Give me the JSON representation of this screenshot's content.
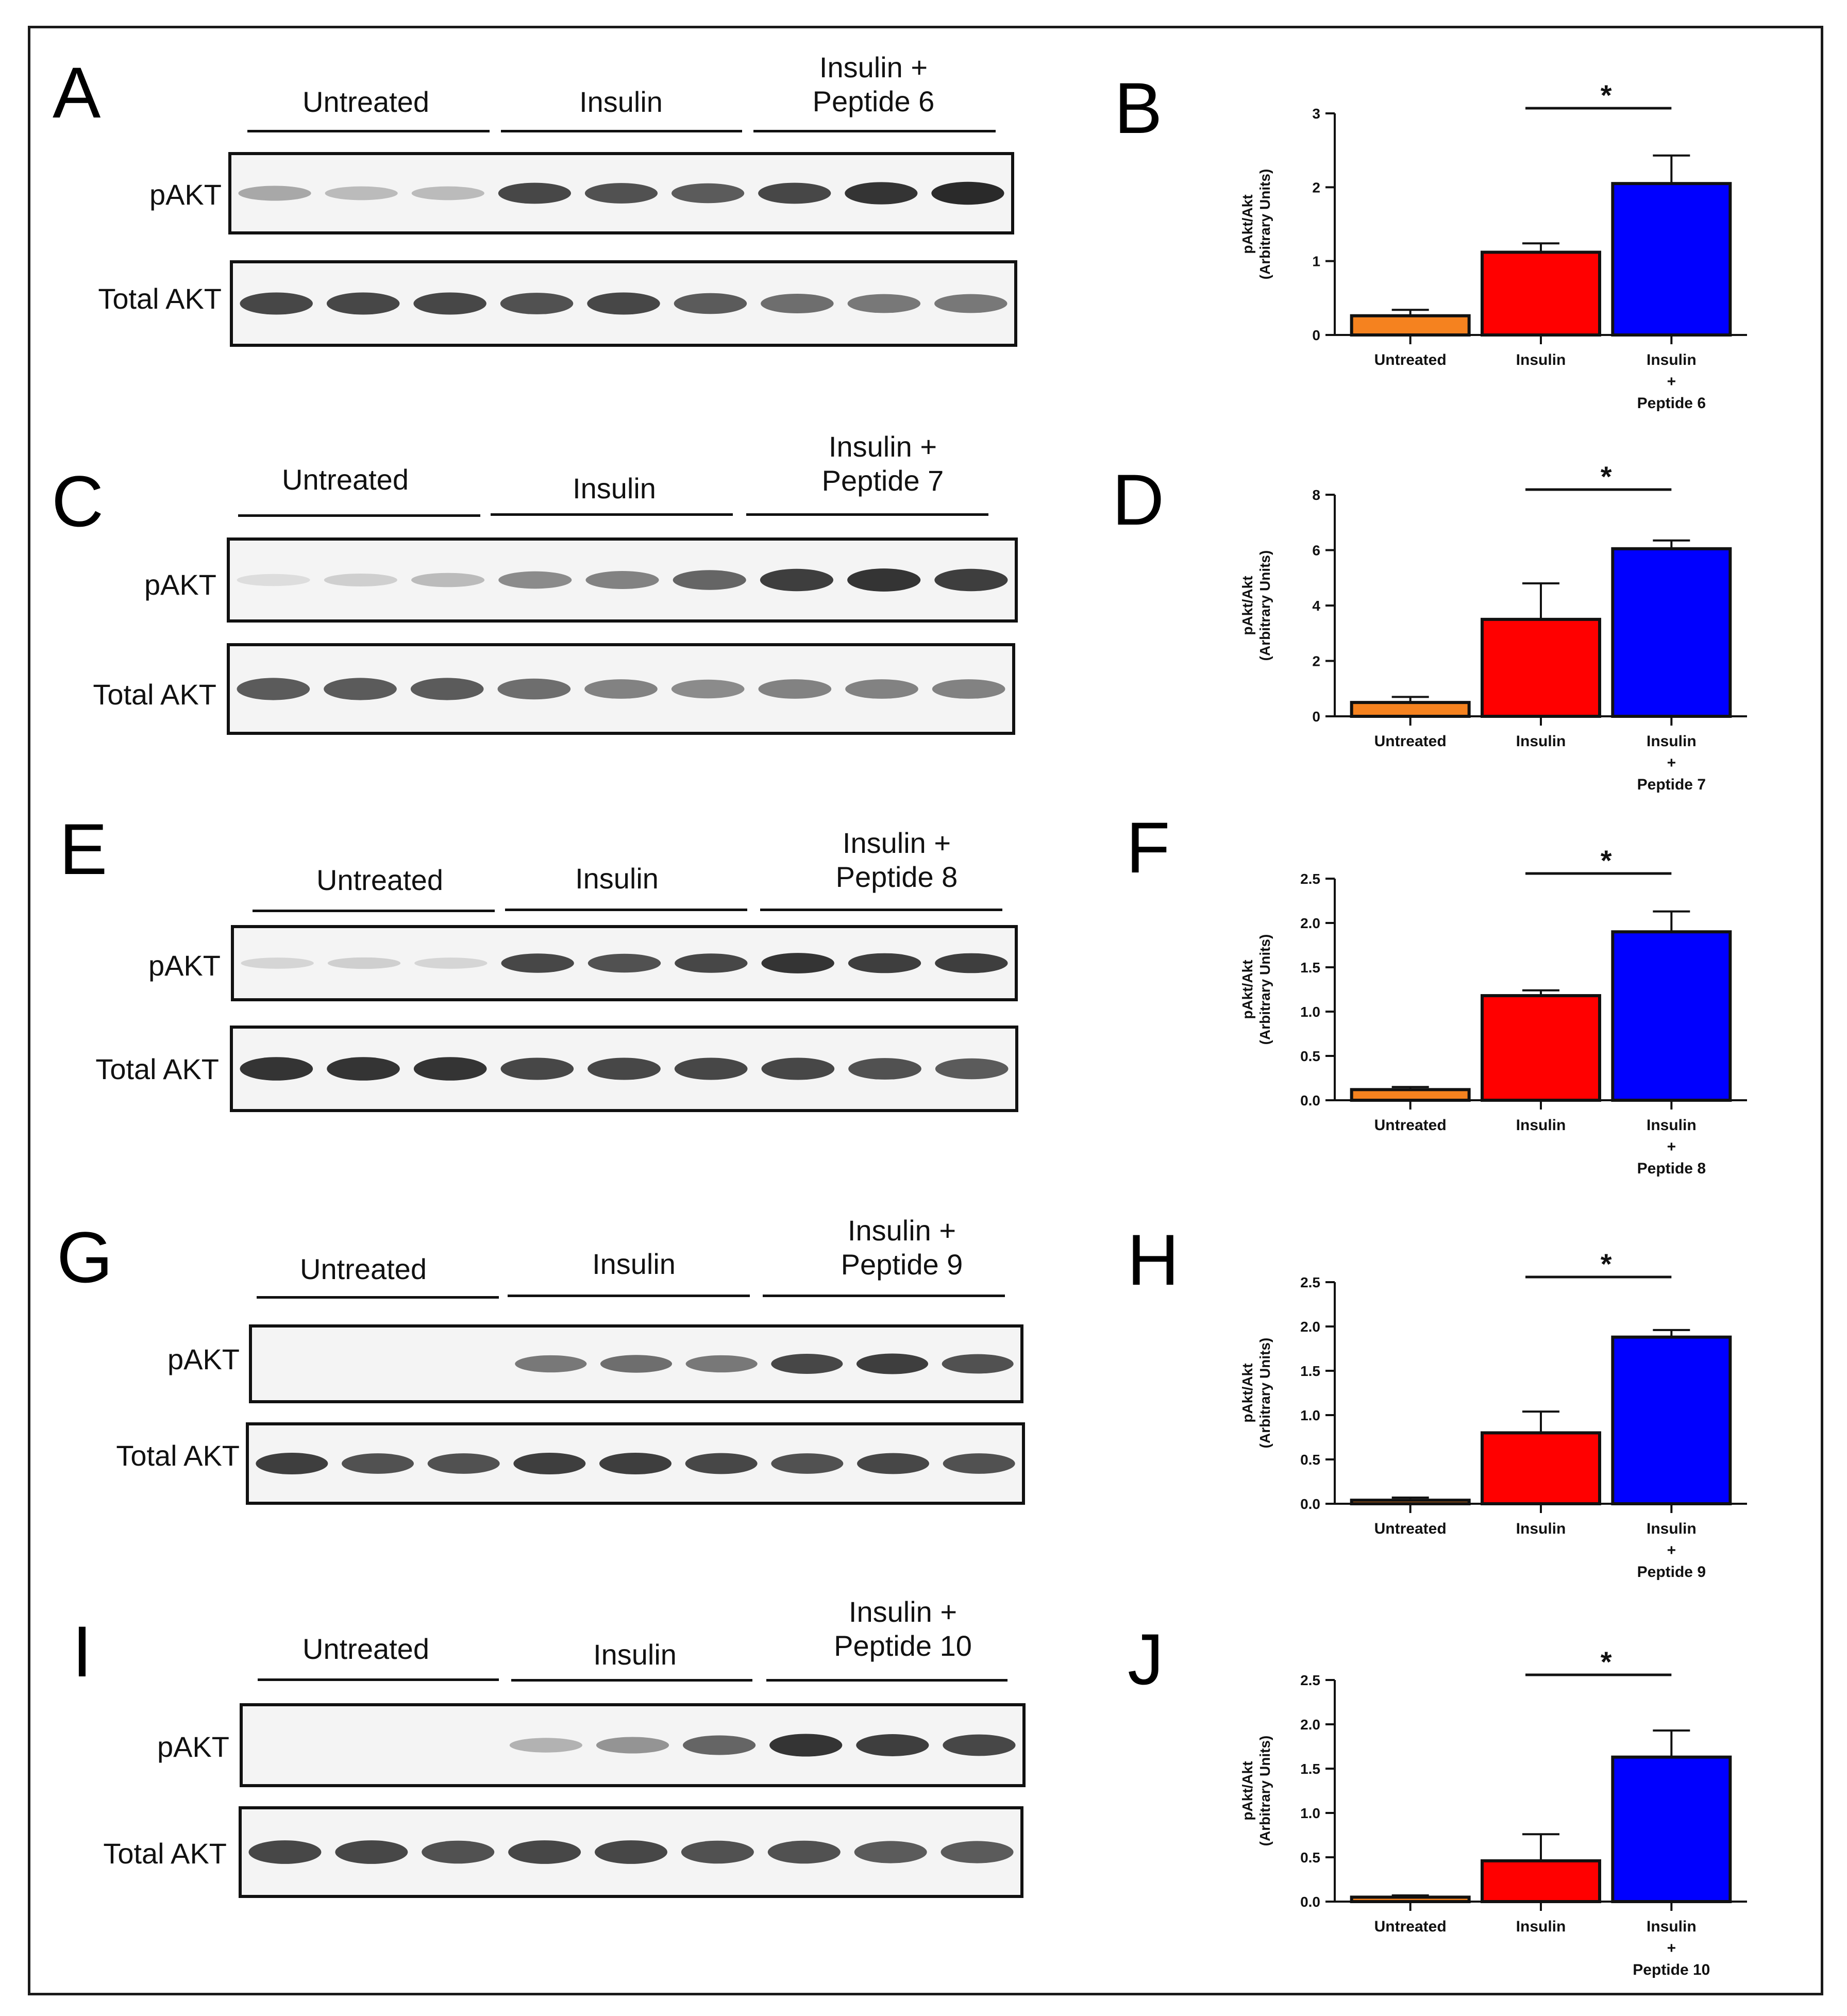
{
  "panels": [
    {
      "letters": {
        "blot": "A",
        "chart": "B"
      },
      "groups": [
        {
          "lines": [
            "Untreated"
          ]
        },
        {
          "lines": [
            "Insulin"
          ]
        },
        {
          "lines": [
            "Insulin +",
            "Peptide 6"
          ]
        }
      ],
      "rows": [
        "pAKT",
        "Total AKT"
      ],
      "blot_intensity": {
        "pAKT": [
          0.35,
          0.25,
          0.25,
          0.85,
          0.8,
          0.75,
          0.85,
          0.95,
          1.0
        ],
        "Total AKT": [
          0.85,
          0.85,
          0.85,
          0.8,
          0.85,
          0.75,
          0.65,
          0.6,
          0.6
        ]
      },
      "chart_data": {
        "type": "bar",
        "categories": [
          [
            "Untreated"
          ],
          [
            "Insulin"
          ],
          [
            "Insulin",
            "+",
            "Peptide 6"
          ]
        ],
        "values": [
          0.26,
          1.12,
          2.05
        ],
        "errors": [
          0.08,
          0.12,
          0.38
        ],
        "colors": [
          "#f5821f",
          "#ff0000",
          "#0000ff"
        ],
        "ylabel": [
          "pAkt/Akt",
          "(Arbitrary Units)"
        ],
        "ylim": [
          0,
          3
        ],
        "yticks": [
          0,
          1,
          2,
          3
        ],
        "tick_format": 0,
        "significance": {
          "label": "*",
          "between": [
            1,
            2
          ]
        }
      }
    },
    {
      "letters": {
        "blot": "C",
        "chart": "D"
      },
      "groups": [
        {
          "lines": [
            "Untreated"
          ]
        },
        {
          "lines": [
            "Insulin"
          ]
        },
        {
          "lines": [
            "Insulin +",
            "Peptide 7"
          ]
        }
      ],
      "rows": [
        "pAKT",
        "Total AKT"
      ],
      "blot_intensity": {
        "pAKT": [
          0.08,
          0.15,
          0.25,
          0.5,
          0.55,
          0.7,
          0.9,
          0.95,
          0.9
        ],
        "Total AKT": [
          0.75,
          0.75,
          0.75,
          0.65,
          0.55,
          0.5,
          0.55,
          0.55,
          0.55
        ]
      },
      "chart_data": {
        "type": "bar",
        "categories": [
          [
            "Untreated"
          ],
          [
            "Insulin"
          ],
          [
            "Insulin",
            "+",
            "Peptide 7"
          ]
        ],
        "values": [
          0.5,
          3.5,
          6.05
        ],
        "errors": [
          0.2,
          1.3,
          0.3
        ],
        "colors": [
          "#f5821f",
          "#ff0000",
          "#0000ff"
        ],
        "ylabel": [
          "pAkt/Akt",
          "(Arbitrary Units)"
        ],
        "ylim": [
          0,
          8
        ],
        "yticks": [
          0,
          2,
          4,
          6,
          8
        ],
        "tick_format": 0,
        "significance": {
          "label": "*",
          "between": [
            1,
            2
          ]
        }
      }
    },
    {
      "letters": {
        "blot": "E",
        "chart": "F"
      },
      "groups": [
        {
          "lines": [
            "Untreated"
          ]
        },
        {
          "lines": [
            "Insulin"
          ]
        },
        {
          "lines": [
            "Insulin +",
            "Peptide 8"
          ]
        }
      ],
      "rows": [
        "pAKT",
        "Total AKT"
      ],
      "blot_intensity": {
        "pAKT": [
          0.12,
          0.15,
          0.12,
          0.85,
          0.8,
          0.85,
          0.95,
          0.9,
          0.9
        ],
        "Total AKT": [
          0.95,
          0.95,
          0.95,
          0.85,
          0.85,
          0.85,
          0.85,
          0.8,
          0.75
        ]
      },
      "chart_data": {
        "type": "bar",
        "categories": [
          [
            "Untreated"
          ],
          [
            "Insulin"
          ],
          [
            "Insulin",
            "+",
            "Peptide 8"
          ]
        ],
        "values": [
          0.12,
          1.18,
          1.9
        ],
        "errors": [
          0.03,
          0.06,
          0.23
        ],
        "colors": [
          "#f5821f",
          "#ff0000",
          "#0000ff"
        ],
        "ylabel": [
          "pAkt/Akt",
          "(Arbitrary Units)"
        ],
        "ylim": [
          0,
          2.5
        ],
        "yticks": [
          0,
          0.5,
          1,
          1.5,
          2,
          2.5
        ],
        "tick_format": 1,
        "significance": {
          "label": "*",
          "between": [
            1,
            2
          ]
        }
      }
    },
    {
      "letters": {
        "blot": "G",
        "chart": "H"
      },
      "groups": [
        {
          "lines": [
            "Untreated"
          ]
        },
        {
          "lines": [
            "Insulin"
          ]
        },
        {
          "lines": [
            "Insulin +",
            "Peptide 9"
          ]
        }
      ],
      "rows": [
        "pAKT",
        "Total AKT"
      ],
      "blot_intensity": {
        "pAKT": [
          0.0,
          0.0,
          0.0,
          0.6,
          0.65,
          0.6,
          0.85,
          0.9,
          0.8
        ],
        "Total AKT": [
          0.9,
          0.8,
          0.8,
          0.9,
          0.9,
          0.85,
          0.8,
          0.85,
          0.8
        ]
      },
      "chart_data": {
        "type": "bar",
        "categories": [
          [
            "Untreated"
          ],
          [
            "Insulin"
          ],
          [
            "Insulin",
            "+",
            "Peptide 9"
          ]
        ],
        "values": [
          0.04,
          0.8,
          1.88
        ],
        "errors": [
          0.03,
          0.24,
          0.08
        ],
        "colors": [
          "#f5821f",
          "#ff0000",
          "#0000ff"
        ],
        "ylabel": [
          "pAkt/Akt",
          "(Arbitrary Units)"
        ],
        "ylim": [
          0,
          2.5
        ],
        "yticks": [
          0,
          0.5,
          1,
          1.5,
          2,
          2.5
        ],
        "tick_format": 1,
        "significance": {
          "label": "*",
          "between": [
            1,
            2
          ]
        }
      }
    },
    {
      "letters": {
        "blot": "I",
        "chart": "J"
      },
      "groups": [
        {
          "lines": [
            "Untreated"
          ]
        },
        {
          "lines": [
            "Insulin"
          ]
        },
        {
          "lines": [
            "Insulin +",
            "Peptide 10"
          ]
        }
      ],
      "rows": [
        "pAKT",
        "Total AKT"
      ],
      "blot_intensity": {
        "pAKT": [
          0.0,
          0.0,
          0.0,
          0.3,
          0.45,
          0.7,
          0.95,
          0.9,
          0.85
        ],
        "Total AKT": [
          0.85,
          0.85,
          0.8,
          0.85,
          0.85,
          0.8,
          0.8,
          0.75,
          0.75
        ]
      },
      "chart_data": {
        "type": "bar",
        "categories": [
          [
            "Untreated"
          ],
          [
            "Insulin"
          ],
          [
            "Insulin",
            "+",
            "Peptide 10"
          ]
        ],
        "values": [
          0.05,
          0.46,
          1.63
        ],
        "errors": [
          0.02,
          0.3,
          0.3
        ],
        "colors": [
          "#f5821f",
          "#ff0000",
          "#0000ff"
        ],
        "ylabel": [
          "pAkt/Akt",
          "(Arbitrary Units)"
        ],
        "ylim": [
          0,
          2.5
        ],
        "yticks": [
          0,
          0.5,
          1,
          1.5,
          2,
          2.5
        ],
        "tick_format": 1,
        "significance": {
          "label": "*",
          "between": [
            1,
            2
          ]
        }
      }
    }
  ]
}
